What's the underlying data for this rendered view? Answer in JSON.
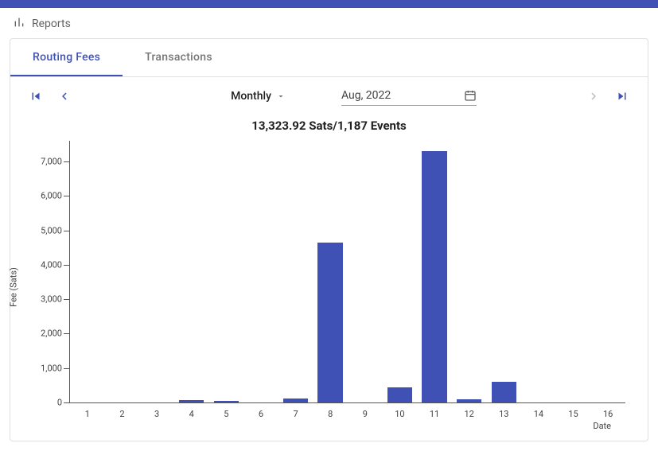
{
  "header": {
    "title": "Reports"
  },
  "tabs": {
    "items": [
      {
        "label": "Routing Fees",
        "active": true
      },
      {
        "label": "Transactions",
        "active": false
      }
    ]
  },
  "controls": {
    "period_label": "Monthly",
    "date_label": "Aug, 2022"
  },
  "chart": {
    "type": "bar",
    "title": "13,323.92 Sats/1,187 Events",
    "ylabel": "Fee (Sats)",
    "xlabel": "Date",
    "bar_color": "#3f51b5",
    "background_color": "#ffffff",
    "axis_color": "#555555",
    "tick_font_size": 11,
    "title_font_size": 15,
    "ylim": [
      0,
      7600
    ],
    "yticks": [
      0,
      1000,
      2000,
      3000,
      4000,
      5000,
      6000,
      7000
    ],
    "ytick_labels": [
      "0",
      "1,000",
      "2,000",
      "3,000",
      "4,000",
      "5,000",
      "6,000",
      "7,000"
    ],
    "categories": [
      "1",
      "2",
      "3",
      "4",
      "5",
      "6",
      "7",
      "8",
      "9",
      "10",
      "11",
      "12",
      "13",
      "14",
      "15",
      "16"
    ],
    "values": [
      0,
      0,
      0,
      60,
      55,
      0,
      110,
      4650,
      0,
      450,
      7300,
      100,
      600,
      0,
      0,
      0
    ],
    "bar_width": 0.72
  },
  "colors": {
    "accent": "#3f51b5",
    "text_muted": "#757575",
    "text": "#212121",
    "border": "#e0e0e0",
    "disabled": "#bdbdbd"
  }
}
